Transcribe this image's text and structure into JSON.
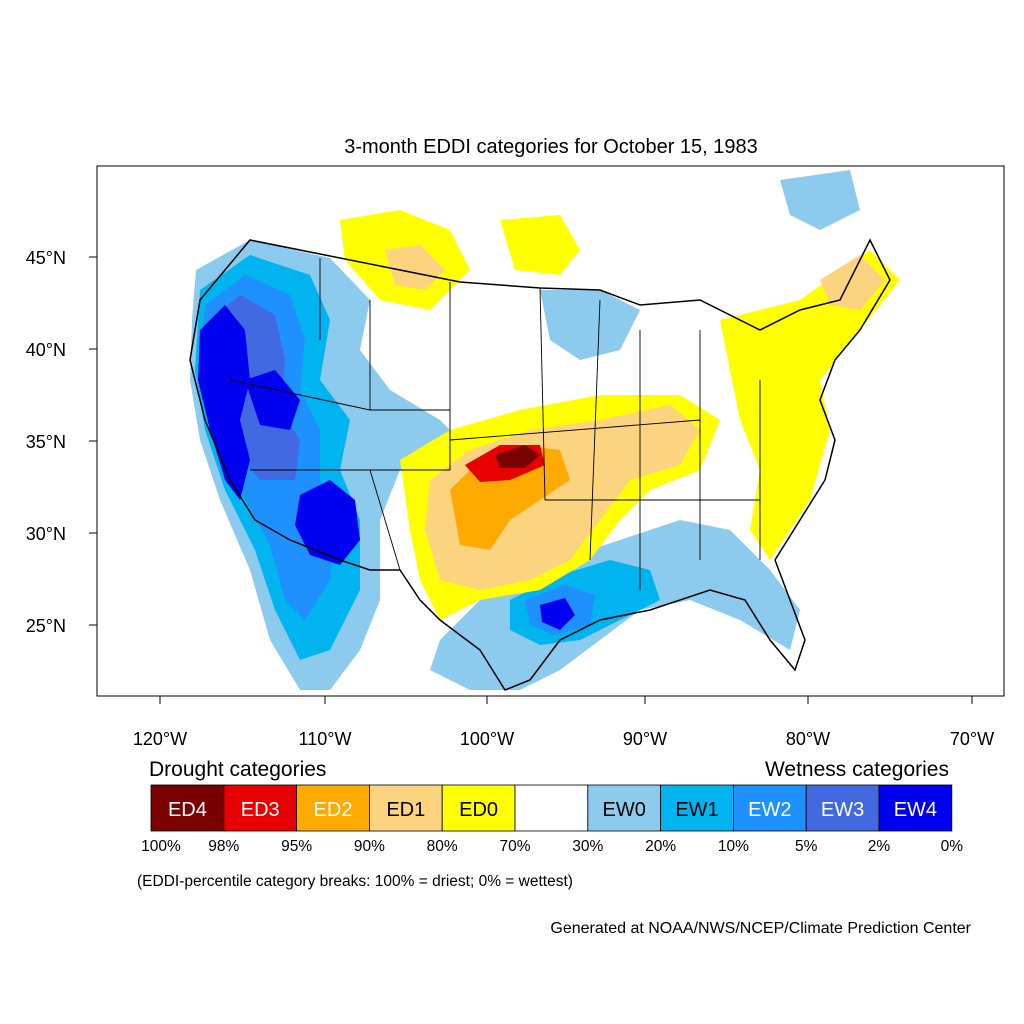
{
  "title": "3-month EDDI categories for October 15, 1983",
  "lat_labels": [
    "45°N",
    "40°N",
    "35°N",
    "30°N",
    "25°N"
  ],
  "lon_labels": [
    "120°W",
    "110°W",
    "100°W",
    "90°W",
    "80°W",
    "70°W"
  ],
  "legend": {
    "drought_title": "Drought categories",
    "wetness_title": "Wetness categories",
    "categories": [
      {
        "label": "ED4",
        "color": "#7b0000",
        "text_color": "#ffffff"
      },
      {
        "label": "ED3",
        "color": "#e60000",
        "text_color": "#ffffff"
      },
      {
        "label": "ED2",
        "color": "#ffaa00",
        "text_color": "#ffffff"
      },
      {
        "label": "ED1",
        "color": "#fcd37f",
        "text_color": "#000000"
      },
      {
        "label": "ED0",
        "color": "#ffff00",
        "text_color": "#000000"
      },
      {
        "label": "",
        "color": "#ffffff",
        "text_color": "#000000"
      },
      {
        "label": "EW0",
        "color": "#8ccbee",
        "text_color": "#000000"
      },
      {
        "label": "EW1",
        "color": "#00b4f0",
        "text_color": "#000000"
      },
      {
        "label": "EW2",
        "color": "#1e90ff",
        "text_color": "#ffffff"
      },
      {
        "label": "EW3",
        "color": "#4169e1",
        "text_color": "#ffffff"
      },
      {
        "label": "EW4",
        "color": "#0000f0",
        "text_color": "#ffffff"
      }
    ],
    "breaks": [
      "100%",
      "98%",
      "95%",
      "90%",
      "80%",
      "70%",
      "30%",
      "20%",
      "10%",
      "5%",
      "2%",
      "0%"
    ],
    "note": "(EDDI-percentile category breaks: 100% = driest; 0% = wettest)"
  },
  "credit": "Generated at NOAA/NWS/NCEP/Climate Prediction Center"
}
